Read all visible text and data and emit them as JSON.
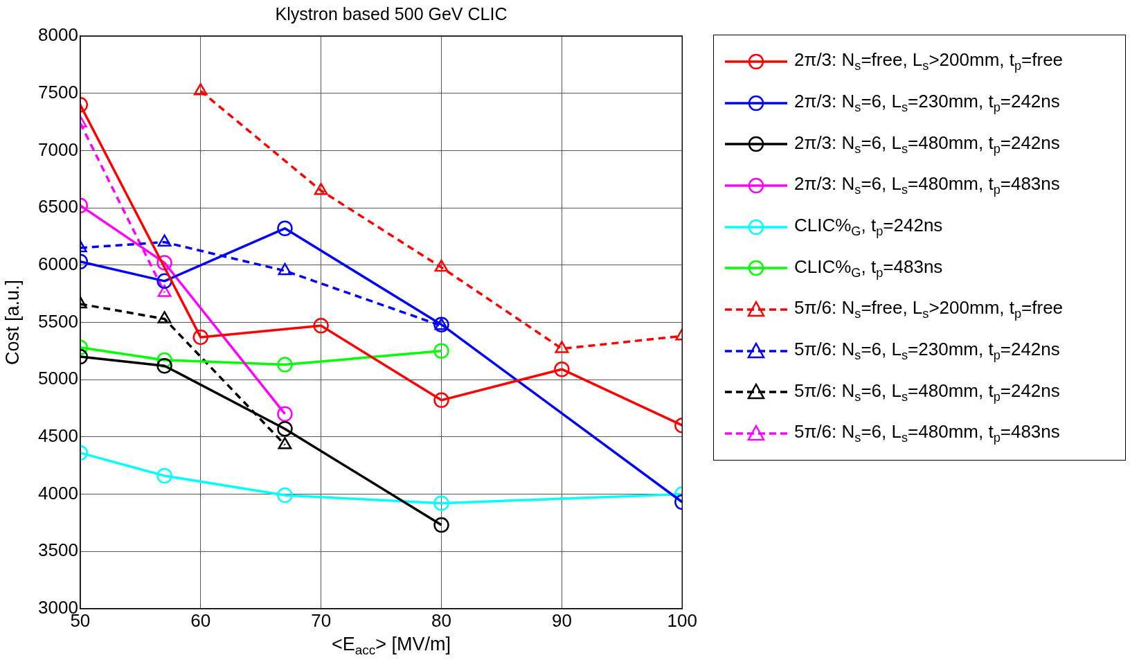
{
  "chart_data": {
    "type": "line",
    "title": "Klystron based 500 GeV CLIC",
    "xlabel": "<E$_{acc}$> [MV/m]",
    "ylabel": "Cost [a.u.]",
    "xlim": [
      50,
      100
    ],
    "xticks": [
      50,
      60,
      70,
      80,
      90,
      100
    ],
    "ylim": [
      3000,
      8000
    ],
    "yticks": [
      3000,
      3500,
      4000,
      4500,
      5000,
      5500,
      6000,
      6500,
      7000,
      7500,
      8000
    ],
    "grid": true,
    "legend": "right",
    "series": [
      {
        "name": "2π/3: N$_{s}$=free, L$_{s}$>200mm, t$_{p}$=free",
        "color": "#ff0000",
        "marker": "circle",
        "line_style": "solid",
        "x": [
          50,
          60,
          70,
          80,
          90,
          100
        ],
        "values": [
          7400,
          5370,
          5470,
          4820,
          5090,
          4600
        ]
      },
      {
        "name": "2π/3: N$_{s}$=6, L$_{s}$=230mm, t$_{p}$=242ns",
        "color": "#0000ff",
        "marker": "circle",
        "line_style": "solid",
        "x": [
          50,
          57,
          67,
          80,
          100
        ],
        "values": [
          6030,
          5860,
          6320,
          5480,
          3930
        ]
      },
      {
        "name": "2π/3: N$_{s}$=6, L$_{s}$=480mm, t$_{p}$=242ns",
        "color": "#000000",
        "marker": "circle",
        "line_style": "solid",
        "x": [
          50,
          57,
          67,
          80
        ],
        "values": [
          5200,
          5120,
          4570,
          3730
        ]
      },
      {
        "name": "2π/3: N$_{s}$=6, L$_{s}$=480mm, t$_{p}$=483ns",
        "color": "#ff00ff",
        "marker": "circle",
        "line_style": "solid",
        "x": [
          50,
          57,
          67
        ],
        "values": [
          6520,
          6020,
          4700
        ]
      },
      {
        "name": "CLIC%$_{G}$, t$_{p}$=242ns",
        "color": "#00ffff",
        "marker": "circle",
        "line_style": "solid",
        "x": [
          50,
          57,
          67,
          80,
          100
        ],
        "values": [
          4360,
          4160,
          3990,
          3920,
          4000
        ]
      },
      {
        "name": "CLIC%$_{G}$, t$_{p}$=483ns",
        "color": "#00ff00",
        "marker": "circle",
        "line_style": "solid",
        "x": [
          50,
          57,
          67,
          80
        ],
        "values": [
          5280,
          5170,
          5130,
          5250
        ]
      },
      {
        "name": "5π/6: N$_{s}$=free, L$_{s}$>200mm, t$_{p}$=free",
        "color": "#ff0000",
        "marker": "triangle",
        "line_style": "dashed",
        "x": [
          60,
          70,
          80,
          90,
          100
        ],
        "values": [
          7520,
          6650,
          5980,
          5270,
          5380
        ]
      },
      {
        "name": "5π/6: N$_{s}$=6, L$_{s}$=230mm, t$_{p}$=242ns",
        "color": "#0000ff",
        "marker": "triangle",
        "line_style": "dashed",
        "x": [
          50,
          57,
          67,
          80
        ],
        "values": [
          6150,
          6200,
          5950,
          5470
        ]
      },
      {
        "name": "5π/6: N$_{s}$=6, L$_{s}$=480mm, t$_{p}$=242ns",
        "color": "#000000",
        "marker": "triangle",
        "line_style": "dashed",
        "x": [
          50,
          57,
          67
        ],
        "values": [
          5660,
          5530,
          4430
        ]
      },
      {
        "name": "5π/6: N$_{s}$=6, L$_{s}$=480mm, t$_{p}$=483ns",
        "color": "#ff00ff",
        "marker": "triangle",
        "line_style": "dashed",
        "x": [
          50,
          57
        ],
        "values": [
          7240,
          5760
        ]
      }
    ]
  }
}
